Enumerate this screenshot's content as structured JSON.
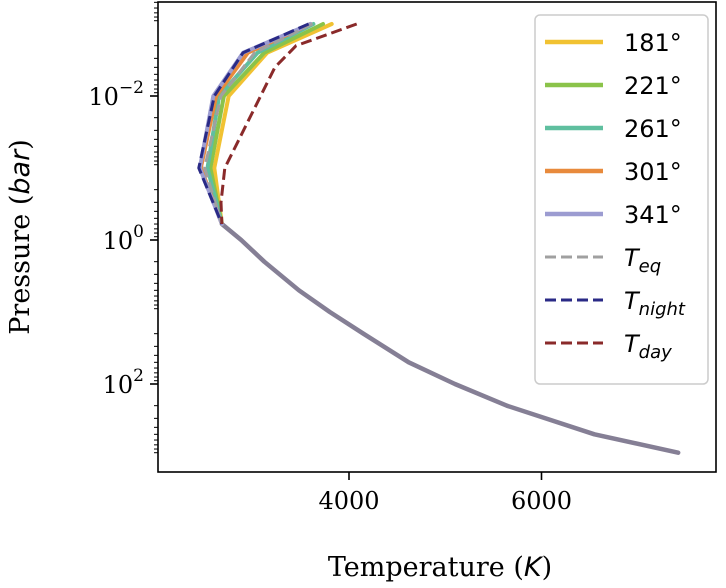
{
  "chart_data": {
    "type": "line",
    "xlabel": {
      "main": "Temperature (",
      "var": "K",
      "close": ")"
    },
    "ylabel": {
      "main": "Pressure (",
      "var": "bar",
      "close": ")"
    },
    "x_scale": "linear",
    "y_scale": "log",
    "y_inverted": true,
    "xlim": [
      2000,
      7700
    ],
    "ylim_pressure_bar": [
      900,
      0.0008
    ],
    "x_ticks": [
      {
        "value": 4000,
        "label": "4000"
      },
      {
        "value": 6000,
        "label": "6000"
      }
    ],
    "y_ticks": [
      {
        "value": 0.01,
        "base": "10",
        "exp": "−2"
      },
      {
        "value": 1,
        "base": "10",
        "exp": "0"
      },
      {
        "value": 100,
        "base": "10",
        "exp": "2"
      }
    ],
    "legend_position": "top-right",
    "grid": false,
    "deep_profile": {
      "pressure_bar": [
        0.6,
        1,
        2,
        5,
        10,
        20,
        50,
        100,
        200,
        500,
        900
      ],
      "temperature_K": [
        2680,
        2880,
        3120,
        3480,
        3800,
        4150,
        4620,
        5100,
        5640,
        6550,
        7420
      ]
    },
    "series": [
      {
        "name": "181°",
        "color": "#f1c232",
        "dash": "solid",
        "temperature_K": [
          3820,
          3150,
          2750,
          2600,
          2680
        ],
        "pressure_bar": [
          0.001,
          0.0025,
          0.01,
          0.1,
          0.6
        ]
      },
      {
        "name": "221°",
        "color": "#8bc34a",
        "dash": "solid",
        "temperature_K": [
          3730,
          3120,
          2700,
          2560,
          2680
        ],
        "pressure_bar": [
          0.001,
          0.0025,
          0.01,
          0.1,
          0.6
        ]
      },
      {
        "name": "261°",
        "color": "#5fbf9f",
        "dash": "solid",
        "temperature_K": [
          3630,
          3050,
          2650,
          2530,
          2680
        ],
        "pressure_bar": [
          0.001,
          0.0025,
          0.01,
          0.1,
          0.6
        ]
      },
      {
        "name": "301°",
        "color": "#e88a3c",
        "dash": "solid",
        "temperature_K": [
          3600,
          2950,
          2620,
          2460,
          2680
        ],
        "pressure_bar": [
          0.001,
          0.0025,
          0.01,
          0.1,
          0.6
        ]
      },
      {
        "name": "341°",
        "color": "#9c9cd1",
        "dash": "solid",
        "temperature_K": [
          3600,
          2900,
          2590,
          2450,
          2680
        ],
        "pressure_bar": [
          0.001,
          0.0025,
          0.01,
          0.1,
          0.6
        ]
      },
      {
        "name": "T",
        "sub": "eq",
        "color": "#a0a0a0",
        "dash": "dashed",
        "temperature_K": [
          3620,
          3020,
          2670,
          2500,
          2680
        ],
        "pressure_bar": [
          0.001,
          0.0025,
          0.01,
          0.1,
          0.6
        ]
      },
      {
        "name": "T",
        "sub": "night",
        "color": "#2a2a86",
        "dash": "dashed",
        "temperature_K": [
          3580,
          2900,
          2600,
          2440,
          2680
        ],
        "pressure_bar": [
          0.001,
          0.0025,
          0.01,
          0.1,
          0.6
        ]
      },
      {
        "name": "T",
        "sub": "day",
        "color": "#8a2a2a",
        "dash": "dashed",
        "temperature_K": [
          4080,
          3450,
          3230,
          2710,
          2670,
          2680
        ],
        "pressure_bar": [
          0.001,
          0.002,
          0.004,
          0.1,
          0.3,
          0.6
        ]
      }
    ],
    "deep_profile_color": "#857f95"
  }
}
